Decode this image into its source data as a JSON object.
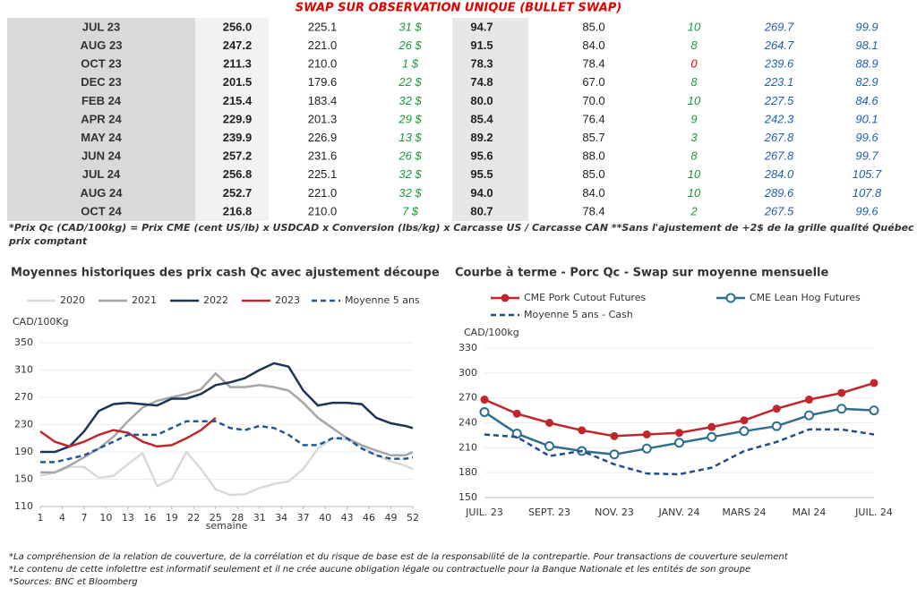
{
  "table": {
    "title": "SWAP SUR OBSERVATION UNIQUE (BULLET SWAP)",
    "rows": [
      [
        "JUL 23",
        "256.0",
        "225.1",
        "31 $",
        "94.7",
        "85.0",
        "10",
        "269.7",
        "99.9"
      ],
      [
        "AUG 23",
        "247.2",
        "221.0",
        "26 $",
        "91.5",
        "84.0",
        "8",
        "264.7",
        "98.1"
      ],
      [
        "OCT 23",
        "211.3",
        "210.0",
        "1 $",
        "78.3",
        "78.4",
        "0",
        "239.6",
        "88.9"
      ],
      [
        "DEC 23",
        "201.5",
        "179.6",
        "22 $",
        "74.8",
        "67.0",
        "8",
        "223.1",
        "82.9"
      ],
      [
        "FEB 24",
        "215.4",
        "183.4",
        "32 $",
        "80.0",
        "70.0",
        "10",
        "227.5",
        "84.6"
      ],
      [
        "APR 24",
        "229.9",
        "201.3",
        "29 $",
        "85.4",
        "76.4",
        "9",
        "242.3",
        "90.1"
      ],
      [
        "MAY 24",
        "239.9",
        "226.9",
        "13 $",
        "89.2",
        "85.7",
        "3",
        "267.8",
        "99.6"
      ],
      [
        "JUN 24",
        "257.2",
        "231.6",
        "26 $",
        "95.6",
        "88.0",
        "8",
        "267.8",
        "99.7"
      ],
      [
        "JUL 24",
        "256.8",
        "225.1",
        "32 $",
        "95.5",
        "85.0",
        "10",
        "284.0",
        "105.7"
      ],
      [
        "AUG 24",
        "252.7",
        "221.0",
        "32 $",
        "94.0",
        "84.0",
        "10",
        "289.6",
        "107.8"
      ],
      [
        "OCT 24",
        "216.8",
        "210.0",
        "7 $",
        "80.7",
        "78.4",
        "2",
        "267.5",
        "99.6"
      ]
    ]
  },
  "notes": {
    "formula_line1": "*Prix Qc (CAD/100kg) = Prix CME (cent US/lb) x USDCAD x Conversion (lbs/kg) x Carcasse US / Carcasse CAN **Sans l'ajustement de +2$ de la grille qualité Québec pour le",
    "formula_line2": "prix comptant",
    "footer": [
      "*La compréhension de la relation de couverture, de la corrélation et du risque de base est de la responsabilité de la contrepartie. Pour transactions de couverture seulement",
      "*Le contenu de cette infolettre est informatif seulement et il ne crée aucune obligation légale ou contractuelle pour la Banque Nationale et les entités de son groupe",
      "*Sources: BNC et Bloomberg"
    ]
  },
  "chart_data": [
    {
      "type": "line",
      "title": "Moyennes historiques des prix cash Qc avec ajustement découpe",
      "y_label": "CAD/100Kg",
      "x_label": "semaine",
      "grid": true,
      "x": [
        1,
        3,
        5,
        7,
        9,
        11,
        13,
        15,
        17,
        19,
        21,
        23,
        25,
        27,
        29,
        31,
        33,
        35,
        37,
        39,
        41,
        43,
        45,
        47,
        49,
        51,
        52
      ],
      "xlim": [
        1,
        52
      ],
      "xticks": [
        1,
        4,
        7,
        10,
        13,
        16,
        19,
        22,
        25,
        28,
        31,
        34,
        37,
        40,
        43,
        46,
        49,
        52
      ],
      "ylim": [
        110,
        350
      ],
      "yticks": [
        110,
        150,
        190,
        230,
        270,
        310,
        350
      ],
      "series": [
        {
          "name": "2020",
          "color": "#d9d9d9",
          "values": [
            155,
            160,
            168,
            168,
            152,
            155,
            172,
            188,
            140,
            150,
            190,
            165,
            135,
            127,
            128,
            137,
            143,
            147,
            165,
            195,
            210,
            208,
            198,
            185,
            176,
            170,
            165
          ]
        },
        {
          "name": "2021",
          "color": "#a6a6a6",
          "values": [
            160,
            160,
            170,
            182,
            195,
            212,
            235,
            255,
            265,
            270,
            275,
            282,
            305,
            285,
            285,
            288,
            285,
            280,
            262,
            240,
            225,
            210,
            200,
            192,
            185,
            185,
            190
          ]
        },
        {
          "name": "2022",
          "color": "#1b3556",
          "values": [
            190,
            190,
            198,
            220,
            250,
            260,
            262,
            260,
            258,
            268,
            268,
            275,
            288,
            292,
            298,
            310,
            320,
            315,
            280,
            258,
            262,
            262,
            260,
            240,
            232,
            228,
            225
          ]
        },
        {
          "name": "2023",
          "color": "#c0272d",
          "values": [
            220,
            205,
            198,
            205,
            215,
            222,
            218,
            205,
            198,
            200,
            210,
            222,
            240,
            null,
            null,
            null,
            null,
            null,
            null,
            null,
            null,
            null,
            null,
            null,
            null,
            null,
            null
          ]
        },
        {
          "name": "Moyenne 5 ans",
          "color": "#1f5a96",
          "dashed": true,
          "values": [
            175,
            175,
            180,
            185,
            195,
            205,
            215,
            215,
            215,
            225,
            235,
            235,
            235,
            225,
            222,
            228,
            225,
            215,
            200,
            200,
            210,
            210,
            195,
            185,
            180,
            180,
            182
          ]
        }
      ]
    },
    {
      "type": "line",
      "title": "Courbe à terme - Porc Qc - Swap sur moyenne mensuelle",
      "y_label": "CAD/100kg",
      "grid": true,
      "categories": [
        "JUIL. 23",
        null,
        "SEPT. 23",
        null,
        "NOV. 23",
        null,
        "JANV. 24",
        null,
        "MARS 24",
        null,
        "MAI 24",
        null,
        "JUIL. 24"
      ],
      "ylim": [
        150,
        330
      ],
      "yticks": [
        150,
        180,
        210,
        240,
        270,
        300,
        330
      ],
      "series": [
        {
          "name": "CME Pork Cutout Futures",
          "color": "#c0272d",
          "marker": "filled",
          "values": [
            268,
            251,
            240,
            231,
            224,
            226,
            228,
            235,
            243,
            257,
            268,
            276,
            288
          ]
        },
        {
          "name": "CME Lean Hog Futures",
          "color": "#2e6e8e",
          "marker": "open",
          "values": [
            253,
            227,
            212,
            206,
            202,
            209,
            216,
            223,
            230,
            236,
            249,
            257,
            255
          ]
        },
        {
          "name": "Moyenne 5 ans - Cash",
          "color": "#1f4e89",
          "dashed": true,
          "values": [
            226,
            223,
            200,
            206,
            190,
            179,
            178,
            186,
            206,
            217,
            232,
            232,
            226
          ]
        }
      ]
    }
  ]
}
